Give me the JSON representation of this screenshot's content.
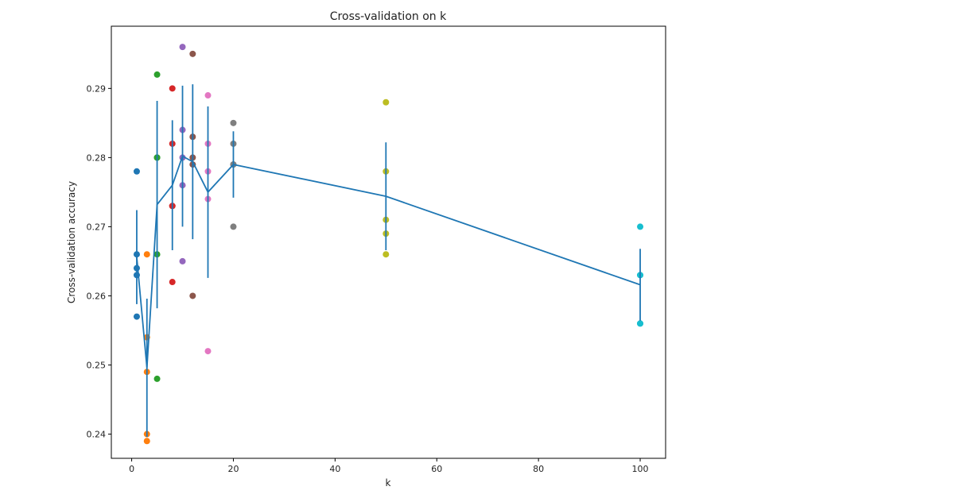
{
  "chart_data": {
    "type": "scatter",
    "title": "Cross-validation on k",
    "xlabel": "k",
    "ylabel": "Cross-validation accuracy",
    "xlim": [
      -4,
      105
    ],
    "ylim": [
      0.2365,
      0.299
    ],
    "xticks": [
      0,
      20,
      40,
      60,
      80,
      100
    ],
    "yticks": [
      0.24,
      0.25,
      0.26,
      0.27,
      0.28,
      0.29
    ],
    "grid": false,
    "series": [
      {
        "k": 1,
        "color": "#1f77b4",
        "values": [
          0.263,
          0.257,
          0.264,
          0.278,
          0.266
        ]
      },
      {
        "k": 3,
        "color": "#ff7f0e",
        "values": [
          0.239,
          0.249,
          0.24,
          0.266,
          0.254
        ]
      },
      {
        "k": 5,
        "color": "#2ca02c",
        "values": [
          0.248,
          0.266,
          0.28,
          0.292,
          0.28
        ]
      },
      {
        "k": 8,
        "color": "#d62728",
        "values": [
          0.262,
          0.282,
          0.273,
          0.29,
          0.273
        ]
      },
      {
        "k": 10,
        "color": "#9467bd",
        "values": [
          0.265,
          0.296,
          0.276,
          0.284,
          0.28
        ]
      },
      {
        "k": 12,
        "color": "#8c564b",
        "values": [
          0.26,
          0.295,
          0.279,
          0.283,
          0.28
        ]
      },
      {
        "k": 15,
        "color": "#e377c2",
        "values": [
          0.252,
          0.289,
          0.278,
          0.282,
          0.274
        ]
      },
      {
        "k": 20,
        "color": "#7f7f7f",
        "values": [
          0.27,
          0.279,
          0.279,
          0.282,
          0.285
        ]
      },
      {
        "k": 50,
        "color": "#bcbd22",
        "values": [
          0.271,
          0.288,
          0.278,
          0.269,
          0.266
        ]
      },
      {
        "k": 100,
        "color": "#17becf",
        "values": [
          0.256,
          0.27,
          0.263,
          0.256,
          0.263
        ]
      }
    ],
    "errorbar": {
      "color": "#1f77b4",
      "k": [
        1,
        3,
        5,
        8,
        10,
        12,
        15,
        20,
        50,
        100
      ],
      "mean": [
        0.2656,
        0.2496,
        0.2732,
        0.276,
        0.2802,
        0.2794,
        0.275,
        0.279,
        0.2744,
        0.2616
      ],
      "std": [
        0.0068,
        0.01,
        0.015,
        0.0094,
        0.0102,
        0.0112,
        0.0124,
        0.0048,
        0.0078,
        0.0052
      ]
    }
  }
}
